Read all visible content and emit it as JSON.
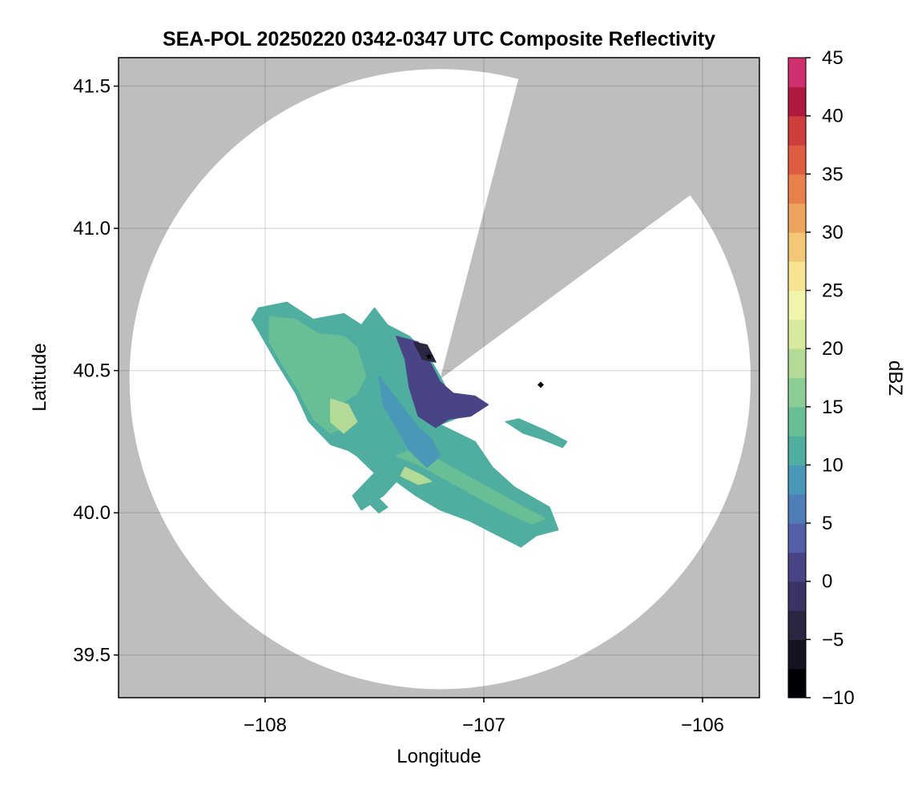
{
  "chart_data": {
    "type": "heatmap",
    "title": "SEA-POL 20250220 0342-0347 UTC Composite Reflectivity",
    "xlabel": "Longitude",
    "ylabel": "Latitude",
    "xlim": [
      -108.67,
      -105.74
    ],
    "ylim": [
      39.35,
      41.6
    ],
    "xticks": [
      -108,
      -107,
      -106
    ],
    "xtick_labels": [
      "−108",
      "−107",
      "−106"
    ],
    "yticks": [
      39.5,
      40.0,
      40.5,
      41.0,
      41.5
    ],
    "ytick_labels": [
      "39.5",
      "40.0",
      "40.5",
      "41.0",
      "41.5"
    ],
    "grid": true,
    "background_color": "#bebebe",
    "radar": {
      "center_lon": -107.2,
      "center_lat": 40.47,
      "range_lon": 1.42,
      "range_lat": 1.09,
      "blocked_sector": {
        "from_lon": -106.84,
        "from_lat": 41.53,
        "to_lon": -106.05,
        "to_lat": 41.12
      }
    },
    "markers": [
      {
        "name": "radar-site",
        "lon": -107.25,
        "lat": 40.55,
        "shape": "star"
      },
      {
        "name": "station",
        "lon": -106.74,
        "lat": 40.45,
        "shape": "diamond"
      }
    ],
    "colorbar": {
      "label": "dBZ",
      "min": -10,
      "max": 45,
      "step": 2.5,
      "ticks": [
        45,
        40,
        35,
        30,
        25,
        20,
        15,
        10,
        5,
        0,
        -5,
        -10
      ],
      "tick_labels": [
        "45",
        "40",
        "35",
        "30",
        "25",
        "20",
        "15",
        "10",
        "5",
        "0",
        "−5",
        "−10"
      ],
      "colors": [
        "#000004",
        "#15131f",
        "#2a2540",
        "#3a3363",
        "#484485",
        "#5360a8",
        "#4f7db8",
        "#4a98b8",
        "#4fae9f",
        "#68bf96",
        "#8ccc95",
        "#b3da96",
        "#d6e99c",
        "#f1f4ab",
        "#f6e492",
        "#f3c775",
        "#eea45c",
        "#e8804b",
        "#de5d40",
        "#cd3e3d",
        "#b0193f",
        "#cf2f6e",
        "#e25a95",
        "#e68ab8",
        "#c28fc6",
        "#9e6cb1",
        "#7f4b98",
        "#5e2a7a",
        "#3c0e5b"
      ]
    },
    "echo_regions": [
      {
        "name": "echo-core",
        "dbz": 10,
        "polygon": [
          [
            -108.03,
            40.72
          ],
          [
            -107.9,
            40.74
          ],
          [
            -107.78,
            40.68
          ],
          [
            -107.64,
            40.7
          ],
          [
            -107.56,
            40.66
          ],
          [
            -107.5,
            40.72
          ],
          [
            -107.44,
            40.66
          ],
          [
            -107.34,
            40.62
          ],
          [
            -107.26,
            40.56
          ],
          [
            -107.2,
            40.48
          ],
          [
            -107.16,
            40.42
          ],
          [
            -107.0,
            40.39
          ],
          [
            -107.1,
            40.34
          ],
          [
            -107.2,
            40.31
          ],
          [
            -107.04,
            40.25
          ],
          [
            -106.96,
            40.16
          ],
          [
            -106.86,
            40.09
          ],
          [
            -106.7,
            40.02
          ],
          [
            -106.66,
            39.94
          ],
          [
            -106.76,
            39.92
          ],
          [
            -106.83,
            39.88
          ],
          [
            -106.96,
            39.93
          ],
          [
            -107.06,
            39.97
          ],
          [
            -107.2,
            40.01
          ],
          [
            -107.31,
            40.06
          ],
          [
            -107.4,
            40.11
          ],
          [
            -107.46,
            40.06
          ],
          [
            -107.56,
            40.01
          ],
          [
            -107.6,
            40.06
          ],
          [
            -107.5,
            40.14
          ],
          [
            -107.58,
            40.2
          ],
          [
            -107.62,
            40.22
          ],
          [
            -107.7,
            40.24
          ],
          [
            -107.8,
            40.32
          ],
          [
            -107.86,
            40.42
          ],
          [
            -107.94,
            40.52
          ],
          [
            -108.0,
            40.6
          ],
          [
            -108.06,
            40.68
          ]
        ]
      },
      {
        "name": "echo-moderate",
        "dbz": 14,
        "polygon": [
          [
            -107.98,
            40.69
          ],
          [
            -107.86,
            40.68
          ],
          [
            -107.76,
            40.63
          ],
          [
            -107.64,
            40.62
          ],
          [
            -107.58,
            40.58
          ],
          [
            -107.54,
            40.48
          ],
          [
            -107.58,
            40.42
          ],
          [
            -107.66,
            40.38
          ],
          [
            -107.64,
            40.3
          ],
          [
            -107.7,
            40.28
          ],
          [
            -107.78,
            40.33
          ],
          [
            -107.84,
            40.42
          ],
          [
            -107.92,
            40.52
          ],
          [
            -107.98,
            40.6
          ]
        ]
      },
      {
        "name": "echo-moderate",
        "dbz": 14,
        "polygon": [
          [
            -107.4,
            40.2
          ],
          [
            -107.3,
            40.17
          ],
          [
            -107.18,
            40.12
          ],
          [
            -107.04,
            40.06
          ],
          [
            -106.92,
            40.01
          ],
          [
            -106.78,
            39.96
          ],
          [
            -106.72,
            39.98
          ],
          [
            -106.82,
            40.02
          ],
          [
            -106.96,
            40.08
          ],
          [
            -107.1,
            40.14
          ],
          [
            -107.24,
            40.2
          ],
          [
            -107.34,
            40.22
          ]
        ]
      },
      {
        "name": "echo-peak",
        "dbz": 19,
        "polygon": [
          [
            -107.7,
            40.4
          ],
          [
            -107.62,
            40.38
          ],
          [
            -107.58,
            40.32
          ],
          [
            -107.64,
            40.28
          ],
          [
            -107.7,
            40.32
          ]
        ]
      },
      {
        "name": "echo-peak",
        "dbz": 19,
        "polygon": [
          [
            -107.36,
            40.16
          ],
          [
            -107.28,
            40.13
          ],
          [
            -107.24,
            40.11
          ],
          [
            -107.3,
            40.1
          ],
          [
            -107.38,
            40.13
          ]
        ]
      },
      {
        "name": "echo-lowband",
        "dbz": 8,
        "polygon": [
          [
            -107.48,
            40.48
          ],
          [
            -107.42,
            40.42
          ],
          [
            -107.36,
            40.36
          ],
          [
            -107.3,
            40.3
          ],
          [
            -107.24,
            40.26
          ],
          [
            -107.2,
            40.2
          ],
          [
            -107.26,
            40.16
          ],
          [
            -107.34,
            40.22
          ],
          [
            -107.4,
            40.3
          ],
          [
            -107.46,
            40.38
          ]
        ]
      },
      {
        "name": "echo-weak",
        "dbz": 2,
        "polygon": [
          [
            -107.4,
            40.62
          ],
          [
            -107.3,
            40.6
          ],
          [
            -107.24,
            40.52
          ],
          [
            -107.2,
            40.46
          ],
          [
            -107.14,
            40.42
          ],
          [
            -107.04,
            40.41
          ],
          [
            -106.98,
            40.38
          ],
          [
            -107.06,
            40.34
          ],
          [
            -107.16,
            40.33
          ],
          [
            -107.22,
            40.3
          ],
          [
            -107.3,
            40.34
          ],
          [
            -107.34,
            40.44
          ],
          [
            -107.36,
            40.54
          ]
        ]
      },
      {
        "name": "echo-verylow",
        "dbz": -4,
        "polygon": [
          [
            -107.32,
            40.6
          ],
          [
            -107.26,
            40.59
          ],
          [
            -107.22,
            40.53
          ],
          [
            -107.28,
            40.54
          ]
        ]
      },
      {
        "name": "echo-fragment",
        "dbz": 12,
        "polygon": [
          [
            -107.52,
            40.03
          ],
          [
            -107.48,
            40.0
          ],
          [
            -107.44,
            40.02
          ],
          [
            -107.48,
            40.05
          ]
        ]
      },
      {
        "name": "echo-fragment",
        "dbz": 11,
        "polygon": [
          [
            -106.9,
            40.32
          ],
          [
            -106.82,
            40.28
          ],
          [
            -106.74,
            40.26
          ],
          [
            -106.64,
            40.23
          ],
          [
            -106.62,
            40.25
          ],
          [
            -106.72,
            40.29
          ],
          [
            -106.84,
            40.33
          ]
        ]
      }
    ]
  }
}
